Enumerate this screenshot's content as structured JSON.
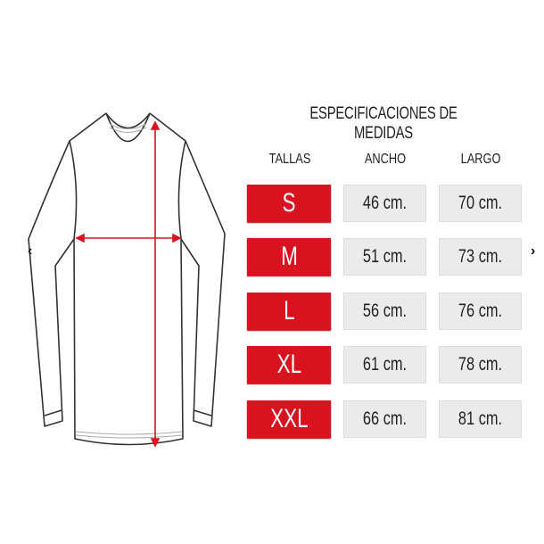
{
  "title": "ESPECIFICACIONES DE MEDIDAS",
  "headers": {
    "size": "TALLAS",
    "width": "ANCHO",
    "length": "LARGO"
  },
  "rows": [
    {
      "size": "S",
      "width": "46 cm.",
      "length": "70 cm."
    },
    {
      "size": "M",
      "width": "51 cm.",
      "length": "73 cm."
    },
    {
      "size": "L",
      "width": "56 cm.",
      "length": "76 cm."
    },
    {
      "size": "XL",
      "width": "61 cm.",
      "length": "78 cm."
    },
    {
      "size": "XXL",
      "width": "66 cm.",
      "length": "81 cm."
    }
  ],
  "nav": {
    "prev": "‹",
    "next": "›"
  },
  "colors": {
    "accent": "#d9121f",
    "cell": "#ebebeb",
    "measure_arrow": "#d9121f"
  }
}
